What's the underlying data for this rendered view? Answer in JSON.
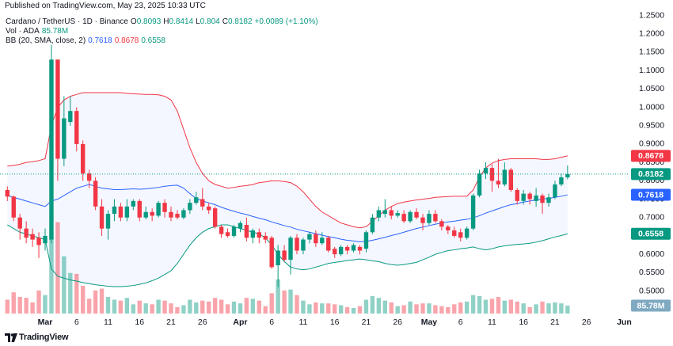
{
  "chart_data": {
    "type": "candlestick",
    "publisher": "Published on TradingView.com, May 23, 2025 10:33 UTC",
    "symbol": "Cardano / TetherUS · 1D · Binance",
    "ohlc_labels": [
      "O",
      "H",
      "L",
      "C"
    ],
    "change": "+0.0089 (+1.10%)",
    "volume_title": "Vol · ADA",
    "bands_title": "BB (20, SMA, close, 2)",
    "footer": "TradingView",
    "up_color": "#089981",
    "down_color": "#f23645",
    "categories": [
      null,
      null,
      null,
      null,
      null,
      null,
      "Mar",
      null,
      null,
      null,
      null,
      "6",
      null,
      null,
      null,
      null,
      "11",
      null,
      null,
      null,
      null,
      "16",
      null,
      null,
      null,
      null,
      "21",
      null,
      null,
      null,
      null,
      "26",
      null,
      null,
      null,
      null,
      null,
      "Apr",
      null,
      null,
      null,
      null,
      "6",
      null,
      null,
      null,
      null,
      "11",
      null,
      null,
      null,
      null,
      "16",
      null,
      null,
      null,
      null,
      "21",
      null,
      null,
      null,
      null,
      "26",
      null,
      null,
      null,
      null,
      "May",
      null,
      null,
      null,
      null,
      "6",
      null,
      null,
      null,
      null,
      "11",
      null,
      null,
      null,
      null,
      "16",
      null,
      null,
      null,
      null,
      "21",
      null,
      null,
      null,
      null,
      "26",
      null,
      null,
      null,
      null,
      null,
      "Jun"
    ],
    "open": [
      0.775,
      0.757,
      0.7,
      0.67,
      0.655,
      0.645,
      0.63,
      0.64,
      1.13,
      0.86,
      0.96,
      0.99,
      0.9,
      0.82,
      0.8,
      0.73,
      0.67,
      0.71,
      0.73,
      0.7,
      0.73,
      0.745,
      0.7,
      0.715,
      0.705,
      0.74,
      0.715,
      0.71,
      0.7,
      0.72,
      0.74,
      0.75,
      0.73,
      0.725,
      0.675,
      0.66,
      0.65,
      0.67,
      0.68,
      0.645,
      0.66,
      0.65,
      0.645,
      0.57,
      0.61,
      0.585,
      0.645,
      0.61,
      0.64,
      0.655,
      0.63,
      0.645,
      0.615,
      0.6,
      0.62,
      0.61,
      0.62,
      0.615,
      0.66,
      0.7,
      0.71,
      0.72,
      0.705,
      0.71,
      0.69,
      0.715,
      0.7,
      0.685,
      0.71,
      0.69,
      0.675,
      0.665,
      0.66,
      0.645,
      0.67,
      0.76,
      0.82,
      0.835,
      0.8,
      0.79,
      0.83,
      0.775,
      0.745,
      0.765,
      0.745,
      0.76,
      0.74,
      0.755,
      0.79,
      0.8093,
      null,
      null,
      null,
      null,
      null,
      null,
      null,
      null,
      null
    ],
    "high": [
      0.785,
      0.76,
      0.71,
      0.69,
      0.67,
      0.66,
      0.67,
      1.17,
      1.13,
      1.03,
      1.03,
      1.0,
      0.91,
      0.83,
      0.81,
      0.75,
      0.72,
      0.75,
      0.74,
      0.75,
      0.75,
      0.75,
      0.73,
      0.725,
      0.745,
      0.75,
      0.73,
      0.72,
      0.725,
      0.75,
      0.77,
      0.78,
      0.74,
      0.73,
      0.68,
      0.67,
      0.68,
      0.69,
      0.7,
      0.67,
      0.67,
      0.66,
      0.65,
      0.625,
      0.625,
      0.65,
      0.655,
      0.645,
      0.66,
      0.665,
      0.66,
      0.65,
      0.62,
      0.625,
      0.625,
      0.63,
      0.625,
      0.665,
      0.71,
      0.73,
      0.75,
      0.73,
      0.72,
      0.72,
      0.72,
      0.725,
      0.71,
      0.72,
      0.72,
      0.695,
      0.68,
      0.675,
      0.67,
      0.675,
      0.765,
      0.83,
      0.85,
      0.845,
      0.86,
      0.85,
      0.835,
      0.78,
      0.775,
      0.77,
      0.78,
      0.765,
      0.765,
      0.8,
      0.82,
      0.8414,
      null,
      null,
      null,
      null,
      null,
      null,
      null,
      null,
      null
    ],
    "low": [
      0.745,
      0.69,
      0.64,
      0.63,
      0.62,
      0.59,
      0.61,
      0.63,
      0.8,
      0.84,
      0.95,
      0.88,
      0.8,
      0.78,
      0.72,
      0.65,
      0.64,
      0.69,
      0.69,
      0.69,
      0.72,
      0.69,
      0.695,
      0.69,
      0.7,
      0.7,
      0.69,
      0.695,
      0.695,
      0.71,
      0.735,
      0.72,
      0.71,
      0.67,
      0.645,
      0.645,
      0.645,
      0.66,
      0.635,
      0.63,
      0.63,
      0.63,
      0.56,
      0.51,
      0.58,
      0.545,
      0.6,
      0.6,
      0.63,
      0.62,
      0.625,
      0.605,
      0.59,
      0.595,
      0.6,
      0.605,
      0.6,
      0.605,
      0.655,
      0.69,
      0.7,
      0.695,
      0.7,
      0.685,
      0.685,
      0.695,
      0.665,
      0.68,
      0.685,
      0.665,
      0.655,
      0.645,
      0.635,
      0.64,
      0.665,
      0.755,
      0.805,
      0.77,
      0.78,
      0.785,
      0.77,
      0.735,
      0.735,
      0.735,
      0.73,
      0.71,
      0.73,
      0.75,
      0.785,
      0.804,
      null,
      null,
      null,
      null,
      null,
      null,
      null,
      null,
      null
    ],
    "close": [
      0.757,
      0.7,
      0.67,
      0.645,
      0.64,
      0.625,
      0.65,
      1.13,
      0.86,
      0.97,
      0.99,
      0.9,
      0.82,
      0.8,
      0.73,
      0.67,
      0.71,
      0.73,
      0.7,
      0.73,
      0.745,
      0.7,
      0.715,
      0.705,
      0.74,
      0.715,
      0.7,
      0.7,
      0.72,
      0.74,
      0.755,
      0.73,
      0.72,
      0.675,
      0.655,
      0.65,
      0.675,
      0.685,
      0.645,
      0.665,
      0.645,
      0.64,
      0.565,
      0.61,
      0.585,
      0.645,
      0.61,
      0.64,
      0.655,
      0.63,
      0.645,
      0.61,
      0.6,
      0.62,
      0.61,
      0.625,
      0.61,
      0.66,
      0.7,
      0.72,
      0.72,
      0.705,
      0.712,
      0.69,
      0.715,
      0.7,
      0.685,
      0.71,
      0.69,
      0.675,
      0.665,
      0.65,
      0.645,
      0.67,
      0.76,
      0.82,
      0.835,
      0.8,
      0.79,
      0.83,
      0.775,
      0.745,
      0.765,
      0.75,
      0.76,
      0.74,
      0.755,
      0.79,
      0.8093,
      0.8182,
      null,
      null,
      null,
      null,
      null,
      null,
      null,
      null,
      null
    ],
    "volume": [
      150,
      230,
      180,
      170,
      120,
      250,
      200,
      880,
      990,
      620,
      440,
      430,
      300,
      160,
      250,
      270,
      180,
      150,
      140,
      170,
      100,
      140,
      110,
      100,
      150,
      140,
      110,
      70,
      90,
      150,
      120,
      140,
      130,
      170,
      150,
      100,
      130,
      110,
      170,
      160,
      140,
      80,
      220,
      370,
      250,
      260,
      200,
      140,
      100,
      120,
      110,
      110,
      100,
      90,
      70,
      60,
      80,
      150,
      190,
      170,
      140,
      120,
      80,
      90,
      130,
      100,
      110,
      110,
      90,
      80,
      70,
      100,
      120,
      130,
      200,
      190,
      150,
      160,
      180,
      140,
      150,
      130,
      110,
      70,
      100,
      130,
      110,
      120,
      110,
      85.78,
      null,
      null,
      null,
      null,
      null,
      null,
      null,
      null,
      null
    ],
    "volume_labels": [
      null,
      null,
      null,
      null,
      null,
      null,
      null,
      null,
      null,
      null,
      null,
      null,
      null,
      null,
      null,
      null,
      null,
      null,
      null,
      null,
      null,
      null,
      null,
      null,
      null,
      null,
      null,
      null,
      null,
      null,
      null,
      null,
      null,
      null,
      null,
      null,
      null,
      null,
      null,
      null,
      null,
      null,
      null,
      null,
      null,
      null,
      null,
      null,
      null,
      null,
      null,
      null,
      null,
      null,
      null,
      null,
      null,
      null,
      null,
      null,
      null,
      null,
      null,
      null,
      null,
      null,
      null,
      null,
      null,
      null,
      null,
      null,
      null,
      null,
      null,
      null,
      null,
      null,
      null,
      null,
      null,
      null,
      null,
      null,
      null,
      null,
      null,
      null,
      null,
      "85.78M",
      null,
      null,
      null,
      null,
      null,
      null,
      null,
      null,
      null
    ],
    "series": [
      {
        "color": "#2962ff",
        "values": [
          0.76,
          0.755,
          0.75,
          0.745,
          0.74,
          0.735,
          0.73,
          0.745,
          0.75,
          0.76,
          0.77,
          0.78,
          0.785,
          0.79,
          0.785,
          0.78,
          0.778,
          0.776,
          0.776,
          0.777,
          0.778,
          0.777,
          0.778,
          0.78,
          0.782,
          0.785,
          0.787,
          0.788,
          0.78,
          0.765,
          0.752,
          0.745,
          0.74,
          0.735,
          0.728,
          0.722,
          0.717,
          0.712,
          0.708,
          0.703,
          0.698,
          0.694,
          0.688,
          0.683,
          0.678,
          0.674,
          0.668,
          0.664,
          0.66,
          0.656,
          0.652,
          0.648,
          0.645,
          0.641,
          0.638,
          0.636,
          0.634,
          0.635,
          0.638,
          0.642,
          0.646,
          0.651,
          0.655,
          0.66,
          0.665,
          0.67,
          0.674,
          0.678,
          0.682,
          0.685,
          0.688,
          0.69,
          0.693,
          0.695,
          0.699,
          0.705,
          0.712,
          0.718,
          0.724,
          0.73,
          0.735,
          0.738,
          0.742,
          0.745,
          0.748,
          0.75,
          0.752,
          0.755,
          0.758,
          0.7618,
          null,
          null,
          null,
          null,
          null,
          null,
          null,
          null,
          null
        ]
      },
      {
        "color": "#f23645",
        "values": [
          0.84,
          0.842,
          0.845,
          0.85,
          0.852,
          0.855,
          0.86,
          0.95,
          1.0,
          1.02,
          1.03,
          1.035,
          1.04,
          1.04,
          1.04,
          1.04,
          1.04,
          1.04,
          1.04,
          1.038,
          1.037,
          1.036,
          1.035,
          1.035,
          1.034,
          1.03,
          1.02,
          0.99,
          0.94,
          0.89,
          0.85,
          0.82,
          0.8,
          0.79,
          0.785,
          0.78,
          0.782,
          0.785,
          0.787,
          0.79,
          0.795,
          0.797,
          0.8,
          0.8,
          0.798,
          0.795,
          0.785,
          0.77,
          0.75,
          0.73,
          0.715,
          0.705,
          0.695,
          0.685,
          0.68,
          0.675,
          0.672,
          0.675,
          0.69,
          0.705,
          0.72,
          0.73,
          0.738,
          0.742,
          0.745,
          0.748,
          0.75,
          0.752,
          0.755,
          0.756,
          0.757,
          0.758,
          0.758,
          0.758,
          0.775,
          0.81,
          0.835,
          0.848,
          0.855,
          0.858,
          0.86,
          0.86,
          0.86,
          0.86,
          0.86,
          0.858,
          0.858,
          0.86,
          0.864,
          0.8678,
          null,
          null,
          null,
          null,
          null,
          null,
          null,
          null,
          null
        ]
      },
      {
        "color": "#089981",
        "values": [
          0.68,
          0.67,
          0.66,
          0.655,
          0.65,
          0.645,
          0.64,
          0.56,
          0.54,
          0.535,
          0.53,
          0.527,
          0.523,
          0.52,
          0.517,
          0.515,
          0.513,
          0.512,
          0.512,
          0.513,
          0.515,
          0.518,
          0.522,
          0.528,
          0.535,
          0.545,
          0.555,
          0.575,
          0.6,
          0.625,
          0.645,
          0.66,
          0.67,
          0.675,
          0.68,
          0.68,
          0.675,
          0.67,
          0.665,
          0.66,
          0.655,
          0.645,
          0.625,
          0.6,
          0.58,
          0.565,
          0.56,
          0.558,
          0.56,
          0.565,
          0.57,
          0.575,
          0.578,
          0.58,
          0.583,
          0.585,
          0.587,
          0.585,
          0.582,
          0.58,
          0.575,
          0.572,
          0.57,
          0.572,
          0.575,
          0.578,
          0.585,
          0.592,
          0.6,
          0.605,
          0.61,
          0.612,
          0.615,
          0.617,
          0.62,
          0.615,
          0.612,
          0.615,
          0.62,
          0.623,
          0.625,
          0.627,
          0.628,
          0.63,
          0.633,
          0.637,
          0.642,
          0.647,
          0.651,
          0.6558,
          null,
          null,
          null,
          null,
          null,
          null,
          null,
          null,
          null
        ]
      }
    ],
    "volume_color": "#7fa9c0",
    "ylim": [
      0.43,
      1.29
    ],
    "yticks": [
      {
        "value": 0.45,
        "label": "0.4500"
      },
      {
        "value": 0.5,
        "label": "0.5000"
      },
      {
        "value": 0.55,
        "label": "0.5500"
      },
      {
        "value": 0.6,
        "label": "0.6000"
      },
      {
        "value": 0.65,
        "label": "0.6500"
      },
      {
        "value": 0.7,
        "label": "0.7000"
      },
      {
        "value": 0.75,
        "label": "0.7500"
      },
      {
        "value": 0.8,
        "label": "0.8000"
      },
      {
        "value": 0.85,
        "label": "0.8500"
      },
      {
        "value": 0.9,
        "label": "0.9000"
      },
      {
        "value": 0.95,
        "label": "0.9500"
      },
      {
        "value": 1.0,
        "label": "1.0000"
      },
      {
        "value": 1.05,
        "label": "1.0500"
      },
      {
        "value": 1.1,
        "label": "1.1000"
      },
      {
        "value": 1.15,
        "label": "1.1500"
      },
      {
        "value": 1.2,
        "label": "1.2000"
      },
      {
        "value": 1.25,
        "label": "1.2500"
      }
    ]
  }
}
